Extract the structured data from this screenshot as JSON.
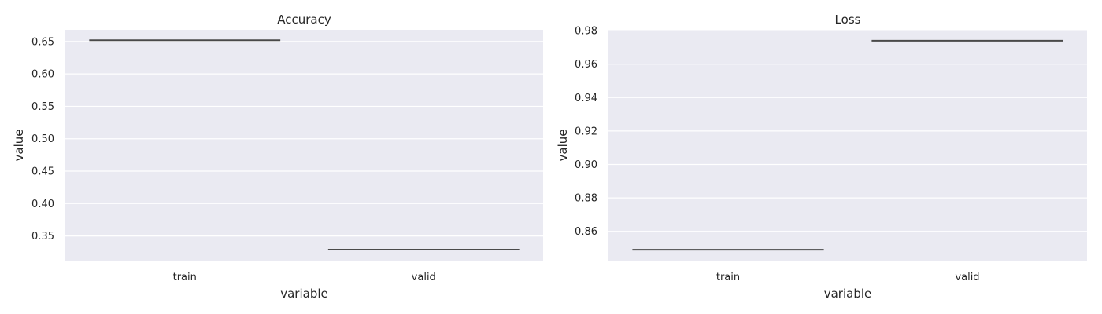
{
  "chart_data": [
    {
      "type": "box",
      "title": "Accuracy",
      "xlabel": "variable",
      "ylabel": "value",
      "categories": [
        "train",
        "valid"
      ],
      "values": [
        0.652,
        0.329
      ],
      "ylim": [
        0.312,
        0.668
      ],
      "yticks": [
        0.35,
        0.4,
        0.45,
        0.5,
        0.55,
        0.6,
        0.65
      ],
      "ytick_labels": [
        "0.35",
        "0.40",
        "0.45",
        "0.50",
        "0.55",
        "0.60",
        "0.65"
      ],
      "grid": true,
      "background": "#eaeaf2",
      "line_color": "#4a4a4a"
    },
    {
      "type": "box",
      "title": "Loss",
      "xlabel": "variable",
      "ylabel": "value",
      "categories": [
        "train",
        "valid"
      ],
      "values": [
        0.849,
        0.974
      ],
      "ylim": [
        0.8425,
        0.9805
      ],
      "yticks": [
        0.86,
        0.88,
        0.9,
        0.92,
        0.94,
        0.96,
        0.98
      ],
      "ytick_labels": [
        "0.86",
        "0.88",
        "0.90",
        "0.92",
        "0.94",
        "0.96",
        "0.98"
      ],
      "grid": true,
      "background": "#eaeaf2",
      "line_color": "#4a4a4a"
    }
  ]
}
